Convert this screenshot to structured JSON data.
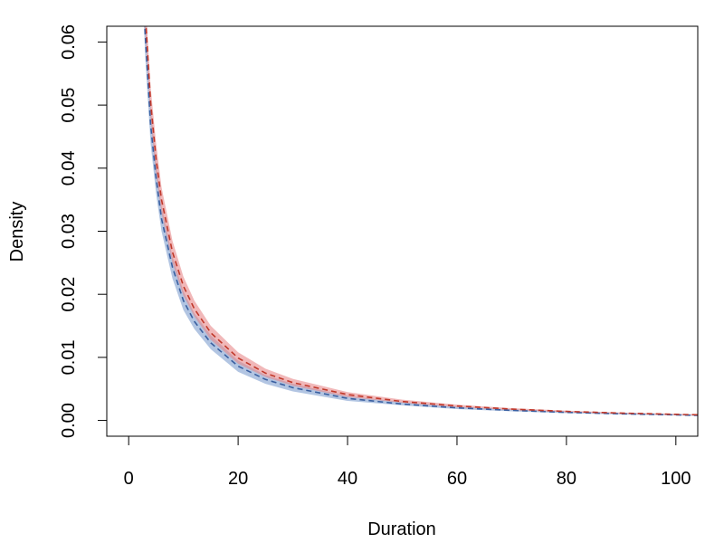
{
  "chart_data": {
    "type": "line",
    "title": "",
    "xlabel": "Duration",
    "ylabel": "Density",
    "xlim": [
      -4,
      104
    ],
    "ylim": [
      -0.0025,
      0.0625
    ],
    "x_ticks": [
      0,
      20,
      40,
      60,
      80,
      100
    ],
    "x_tick_labels": [
      "0",
      "20",
      "40",
      "60",
      "80",
      "100"
    ],
    "y_ticks": [
      0.0,
      0.01,
      0.02,
      0.03,
      0.04,
      0.05,
      0.06
    ],
    "y_tick_labels": [
      "0.00",
      "0.01",
      "0.02",
      "0.03",
      "0.04",
      "0.05",
      "0.06"
    ],
    "grid": false,
    "legend": "none",
    "colors": {
      "blue_band": "#7f9ecf",
      "red_band": "#e8898b",
      "blue_line": "#3a5fa0",
      "red_line": "#c0392b"
    },
    "x": [
      2,
      3,
      4,
      5,
      6,
      8,
      10,
      12,
      15,
      20,
      25,
      30,
      40,
      50,
      60,
      70,
      80,
      90,
      100,
      104
    ],
    "series": [
      {
        "style": "band",
        "color": "blue_band",
        "lower": [
          0.08,
          0.058,
          0.044,
          0.036,
          0.03,
          0.0225,
          0.0175,
          0.0145,
          0.0113,
          0.0077,
          0.0058,
          0.0046,
          0.0031,
          0.0024,
          0.0018,
          0.00145,
          0.00115,
          0.00095,
          0.0008,
          0.00072
        ],
        "upper": [
          0.09,
          0.065,
          0.05,
          0.041,
          0.034,
          0.026,
          0.0205,
          0.017,
          0.0135,
          0.0095,
          0.0072,
          0.0058,
          0.0039,
          0.0029,
          0.0022,
          0.00175,
          0.0014,
          0.00115,
          0.00095,
          0.00088
        ]
      },
      {
        "style": "band",
        "color": "red_band",
        "lower": [
          0.085,
          0.062,
          0.048,
          0.039,
          0.033,
          0.025,
          0.0198,
          0.0165,
          0.0128,
          0.009,
          0.0069,
          0.0055,
          0.0037,
          0.0028,
          0.0021,
          0.00165,
          0.0013,
          0.00108,
          0.0009,
          0.00082
        ],
        "upper": [
          0.092,
          0.068,
          0.053,
          0.044,
          0.037,
          0.0285,
          0.0228,
          0.019,
          0.015,
          0.0108,
          0.0082,
          0.0066,
          0.0045,
          0.0033,
          0.0025,
          0.00195,
          0.00155,
          0.00125,
          0.00105,
          0.00096
        ]
      },
      {
        "style": "dashed",
        "color": "blue_line",
        "values": [
          0.085,
          0.0615,
          0.047,
          0.0385,
          0.032,
          0.0243,
          0.019,
          0.0157,
          0.0123,
          0.0086,
          0.0065,
          0.0052,
          0.0035,
          0.0026,
          0.002,
          0.0016,
          0.00128,
          0.00105,
          0.00088,
          0.0008
        ]
      },
      {
        "style": "dashed",
        "color": "red_line",
        "values": [
          0.088,
          0.065,
          0.0505,
          0.0415,
          0.035,
          0.0267,
          0.0213,
          0.0177,
          0.0139,
          0.0099,
          0.0075,
          0.006,
          0.0041,
          0.003,
          0.0023,
          0.0018,
          0.00143,
          0.00117,
          0.00097,
          0.00089
        ]
      }
    ]
  }
}
